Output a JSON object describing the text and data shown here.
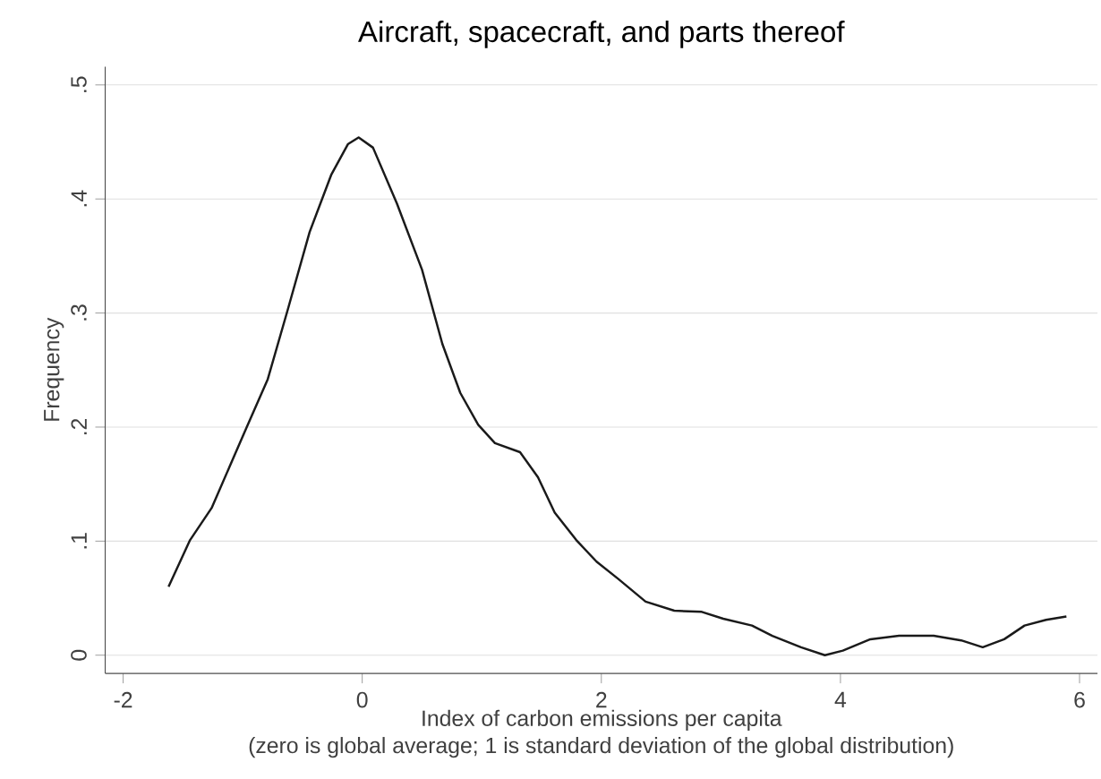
{
  "chart_data": {
    "type": "line",
    "title": "Aircraft, spacecraft, and parts thereof",
    "xlabel": "Index of carbon emissions per capita\n(zero is global average; 1 is standard deviation of the global distribution)",
    "ylabel": "Frequency",
    "x": [
      -1.62,
      -1.44,
      -1.26,
      -0.97,
      -0.79,
      -0.62,
      -0.44,
      -0.26,
      -0.12,
      -0.03,
      0.09,
      0.29,
      0.5,
      0.67,
      0.82,
      0.97,
      1.11,
      1.32,
      1.47,
      1.61,
      1.79,
      1.96,
      2.14,
      2.37,
      2.61,
      2.84,
      3.02,
      3.26,
      3.43,
      3.67,
      3.87,
      4.02,
      4.25,
      4.49,
      4.78,
      5.01,
      5.19,
      5.37,
      5.54,
      5.72,
      5.89
    ],
    "series": [
      {
        "color": "#1a1a1a",
        "values": [
          0.06,
          0.101,
          0.129,
          0.199,
          0.242,
          0.304,
          0.371,
          0.421,
          0.448,
          0.454,
          0.445,
          0.396,
          0.338,
          0.273,
          0.23,
          0.202,
          0.186,
          0.178,
          0.156,
          0.125,
          0.101,
          0.082,
          0.067,
          0.047,
          0.039,
          0.038,
          0.032,
          0.026,
          0.017,
          0.007,
          0.0,
          0.004,
          0.014,
          0.017,
          0.017,
          0.013,
          0.007,
          0.014,
          0.026,
          0.031,
          0.034
        ]
      }
    ],
    "xlim": [
      -2.15,
      6.15
    ],
    "ylim": [
      -0.016,
      0.516
    ],
    "xticks": [
      -2,
      0,
      2,
      4,
      6
    ],
    "yticks": [
      {
        "value": 0,
        "label": "0"
      },
      {
        "value": 0.1,
        "label": ".1"
      },
      {
        "value": 0.2,
        "label": ".2"
      },
      {
        "value": 0.3,
        "label": ".3"
      },
      {
        "value": 0.4,
        "label": ".4"
      },
      {
        "value": 0.5,
        "label": ".5"
      }
    ],
    "grid": "y",
    "marker": "none",
    "line_style": "solid"
  }
}
